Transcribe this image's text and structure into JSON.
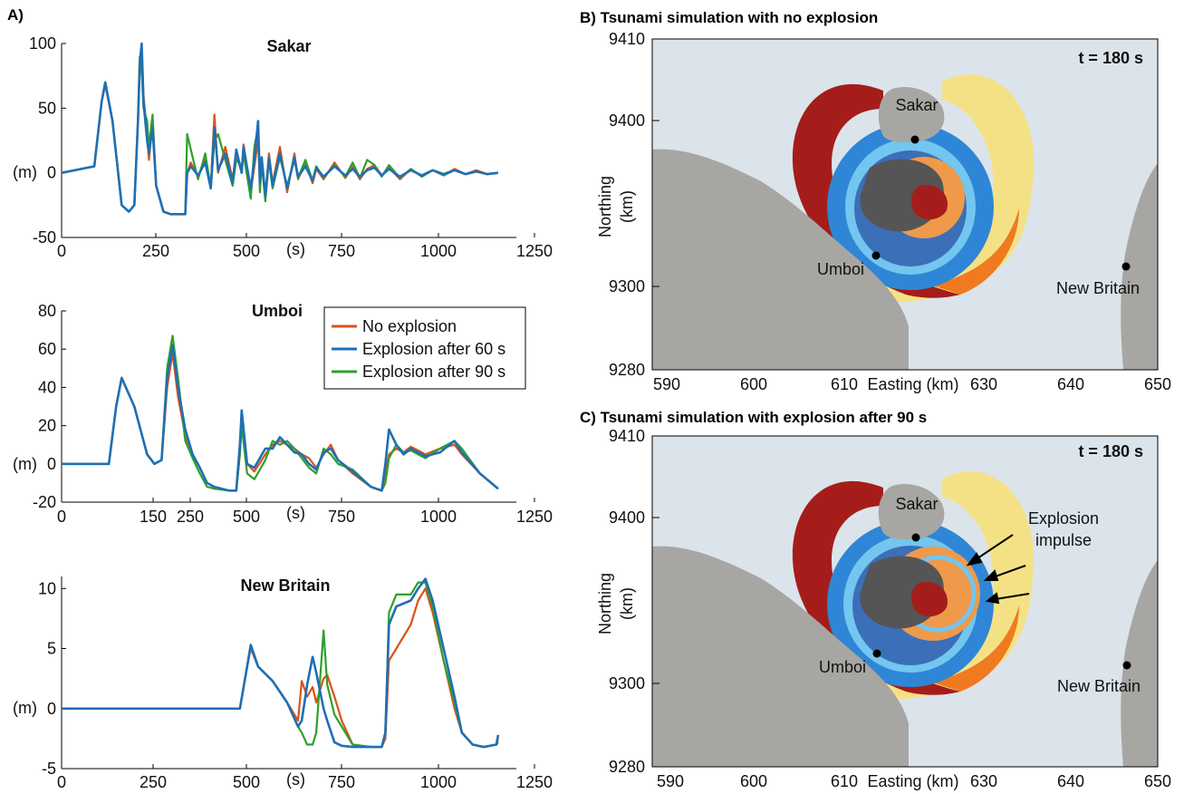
{
  "figure": {
    "panel_a_label": "A)",
    "panel_b_title": "B) Tsunami simulation with no explosion",
    "panel_c_title": "C) Tsunami simulation with explosion after 90 s"
  },
  "colors": {
    "no_explosion": "#d95319",
    "explosion_60": "#1f6fb4",
    "explosion_90": "#2ca02c",
    "sea": "#dbe4ea",
    "land": "#a8a6a2",
    "wave_red": "#a51d1a",
    "wave_orange": "#ef7a1f",
    "wave_yellow": "#f7e07a",
    "wave_blue": "#2f86d6",
    "wave_cyan": "#73c6ef"
  },
  "legend": {
    "entries": [
      "No explosion",
      "Explosion after 60 s",
      "Explosion after 90 s"
    ]
  },
  "chart_data": [
    {
      "type": "line",
      "title": "Sakar",
      "xlabel": "(s)",
      "ylabel": "(m)",
      "xlim": [
        0,
        1250
      ],
      "ylim": [
        -50,
        100
      ],
      "xticks": [
        "0",
        "250",
        "500",
        "750",
        "1000",
        "1250"
      ],
      "yticks": [
        "100",
        "50",
        "0",
        "-50"
      ],
      "series": [
        {
          "name": "No explosion",
          "x": [
            0,
            90,
            110,
            120,
            140,
            165,
            185,
            200,
            210,
            215,
            220,
            225,
            235,
            240,
            250,
            260,
            280,
            300,
            340,
            345,
            355,
            375,
            395,
            410,
            420,
            430,
            450,
            470,
            480,
            495,
            500,
            520,
            530,
            540,
            545,
            550,
            560,
            570,
            580,
            600,
            620,
            640,
            650,
            670,
            690,
            700,
            720,
            750,
            780,
            800,
            820,
            840,
            860,
            880,
            900,
            930,
            960,
            990,
            1020,
            1050,
            1080,
            1110,
            1140,
            1170,
            1200
          ],
          "y": [
            0,
            5,
            55,
            68,
            40,
            -25,
            -30,
            -25,
            40,
            80,
            95,
            60,
            30,
            10,
            40,
            -10,
            -30,
            -32,
            -32,
            0,
            8,
            -3,
            10,
            -10,
            45,
            0,
            20,
            -5,
            15,
            0,
            22,
            -15,
            5,
            25,
            -5,
            10,
            -20,
            15,
            -8,
            20,
            -15,
            15,
            -5,
            8,
            -8,
            3,
            -5,
            8,
            -4,
            5,
            -5,
            3,
            6,
            -2,
            4,
            -5,
            3,
            -3,
            2,
            -2,
            3,
            -1,
            2,
            -1,
            0
          ]
        },
        {
          "name": "Explosion after 60 s",
          "x": [
            0,
            90,
            110,
            120,
            140,
            165,
            185,
            200,
            210,
            215,
            220,
            225,
            235,
            240,
            250,
            260,
            280,
            300,
            340,
            345,
            355,
            375,
            395,
            410,
            420,
            430,
            450,
            470,
            480,
            495,
            500,
            520,
            530,
            540,
            545,
            550,
            560,
            570,
            580,
            600,
            620,
            640,
            650,
            670,
            690,
            700,
            720,
            750,
            780,
            800,
            820,
            840,
            860,
            880,
            900,
            930,
            960,
            990,
            1020,
            1050,
            1080,
            1110,
            1140,
            1170,
            1200
          ],
          "y": [
            0,
            5,
            55,
            70,
            40,
            -25,
            -30,
            -25,
            40,
            85,
            100,
            55,
            25,
            15,
            35,
            -10,
            -30,
            -32,
            -32,
            0,
            5,
            -2,
            8,
            -12,
            35,
            2,
            15,
            -8,
            18,
            0,
            20,
            -12,
            10,
            40,
            -8,
            12,
            -18,
            12,
            -10,
            15,
            -12,
            12,
            -3,
            5,
            -6,
            4,
            -3,
            5,
            -2,
            3,
            -3,
            2,
            4,
            -2,
            3,
            -3,
            2,
            -2,
            2,
            -1,
            2,
            -1,
            1,
            -1,
            0
          ]
        },
        {
          "name": "Explosion after 90 s",
          "x": [
            0,
            90,
            110,
            120,
            140,
            165,
            185,
            200,
            210,
            215,
            220,
            225,
            235,
            240,
            250,
            260,
            280,
            300,
            340,
            345,
            355,
            375,
            395,
            410,
            420,
            430,
            450,
            470,
            480,
            495,
            500,
            520,
            530,
            540,
            545,
            550,
            560,
            570,
            580,
            600,
            620,
            640,
            650,
            670,
            690,
            700,
            720,
            750,
            780,
            800,
            820,
            840,
            860,
            880,
            900,
            930,
            960,
            990,
            1020,
            1050,
            1080,
            1110,
            1140,
            1170,
            1200
          ],
          "y": [
            0,
            5,
            55,
            70,
            40,
            -25,
            -30,
            -25,
            40,
            90,
            80,
            50,
            40,
            20,
            45,
            -10,
            -30,
            -32,
            -32,
            30,
            18,
            -5,
            15,
            -12,
            25,
            30,
            10,
            -10,
            10,
            5,
            15,
            -20,
            20,
            35,
            -15,
            8,
            -22,
            10,
            -12,
            12,
            -10,
            10,
            -4,
            10,
            -6,
            5,
            -4,
            6,
            -3,
            8,
            -4,
            10,
            6,
            -3,
            6,
            -4,
            3,
            -3,
            2,
            -2,
            2,
            -1,
            1,
            -1,
            0
          ]
        }
      ]
    },
    {
      "type": "line",
      "title": "Umboi",
      "xlabel": "(s)",
      "ylabel": "(m)",
      "xlim": [
        0,
        1250
      ],
      "ylim": [
        -20,
        80
      ],
      "xticks": [
        "0",
        "150",
        "250",
        "500",
        "750",
        "1000",
        "1250"
      ],
      "yticks": [
        "80",
        "60",
        "40",
        "20",
        "0",
        "-20"
      ],
      "series": [
        {
          "name": "No explosion",
          "x": [
            0,
            130,
            150,
            165,
            200,
            235,
            255,
            275,
            290,
            305,
            320,
            340,
            360,
            380,
            400,
            420,
            460,
            480,
            490,
            495,
            510,
            530,
            560,
            580,
            600,
            620,
            640,
            660,
            680,
            700,
            720,
            740,
            760,
            800,
            850,
            880,
            890,
            900,
            920,
            940,
            960,
            980,
            1000,
            1040,
            1080,
            1100,
            1150,
            1200
          ],
          "y": [
            0,
            0,
            30,
            45,
            30,
            5,
            0,
            2,
            40,
            58,
            35,
            15,
            5,
            -2,
            -10,
            -12,
            -14,
            -14,
            5,
            22,
            0,
            -4,
            5,
            10,
            12,
            10,
            8,
            5,
            3,
            -2,
            5,
            10,
            2,
            -5,
            -12,
            -14,
            -5,
            5,
            8,
            6,
            9,
            7,
            5,
            8,
            10,
            5,
            -5,
            -13
          ]
        },
        {
          "name": "Explosion after 60 s",
          "x": [
            0,
            130,
            150,
            165,
            200,
            235,
            255,
            275,
            290,
            305,
            320,
            340,
            360,
            380,
            400,
            420,
            460,
            480,
            490,
            495,
            510,
            530,
            560,
            580,
            600,
            620,
            640,
            660,
            680,
            700,
            720,
            740,
            760,
            800,
            850,
            880,
            890,
            900,
            920,
            940,
            960,
            980,
            1000,
            1040,
            1080,
            1100,
            1150,
            1200
          ],
          "y": [
            0,
            0,
            30,
            45,
            30,
            5,
            0,
            2,
            45,
            62,
            40,
            18,
            5,
            -2,
            -10,
            -12,
            -14,
            -14,
            10,
            28,
            0,
            -2,
            8,
            8,
            14,
            10,
            6,
            5,
            0,
            -3,
            6,
            8,
            2,
            -4,
            -12,
            -14,
            0,
            18,
            10,
            5,
            8,
            6,
            4,
            6,
            12,
            6,
            -5,
            -13
          ]
        },
        {
          "name": "Explosion after 90 s",
          "x": [
            0,
            130,
            150,
            165,
            200,
            235,
            255,
            275,
            290,
            305,
            320,
            340,
            360,
            380,
            400,
            420,
            460,
            480,
            490,
            495,
            510,
            530,
            560,
            580,
            600,
            620,
            640,
            660,
            680,
            700,
            720,
            740,
            760,
            800,
            850,
            880,
            890,
            900,
            920,
            940,
            960,
            980,
            1000,
            1040,
            1080,
            1100,
            1150,
            1200
          ],
          "y": [
            0,
            0,
            30,
            45,
            30,
            5,
            0,
            2,
            50,
            67,
            45,
            12,
            3,
            -5,
            -12,
            -13,
            -14,
            -14,
            5,
            20,
            -5,
            -8,
            2,
            12,
            10,
            12,
            8,
            3,
            -2,
            -5,
            8,
            5,
            0,
            -3,
            -12,
            -14,
            -10,
            3,
            10,
            6,
            7,
            5,
            3,
            8,
            12,
            8,
            -5,
            -13
          ]
        }
      ]
    },
    {
      "type": "line",
      "title": "New Britain",
      "xlabel": "(s)",
      "ylabel": "(m)",
      "xlim": [
        0,
        1250
      ],
      "ylim": [
        -5,
        11
      ],
      "xticks": [
        "0",
        "250",
        "500",
        "750",
        "1000",
        "1250"
      ],
      "yticks": [
        "10",
        "5",
        "0",
        "-5"
      ],
      "series": [
        {
          "name": "No explosion",
          "x": [
            0,
            490,
            510,
            520,
            540,
            580,
            620,
            650,
            660,
            675,
            690,
            700,
            720,
            730,
            750,
            770,
            800,
            850,
            880,
            890,
            900,
            920,
            960,
            980,
            1000,
            1020,
            1050,
            1080,
            1100,
            1130,
            1160,
            1195,
            1200
          ],
          "y": [
            0,
            0,
            3.5,
            5,
            3.5,
            2.3,
            0.5,
            -1,
            2.3,
            1,
            1.8,
            0.5,
            2.5,
            2.8,
            1,
            -1,
            -3,
            -3.2,
            -3.2,
            -2.5,
            4,
            5,
            7,
            9,
            10,
            8,
            4,
            0,
            -2,
            -3,
            -3.2,
            -3,
            -2.5
          ]
        },
        {
          "name": "Explosion after 60 s",
          "x": [
            0,
            490,
            510,
            520,
            540,
            580,
            620,
            650,
            660,
            675,
            690,
            700,
            720,
            730,
            750,
            770,
            800,
            850,
            880,
            890,
            900,
            920,
            960,
            980,
            1000,
            1020,
            1050,
            1080,
            1100,
            1130,
            1160,
            1195,
            1200
          ],
          "y": [
            0,
            0,
            3.5,
            5.3,
            3.5,
            2.3,
            0.5,
            -1.5,
            -1,
            2,
            4.3,
            3,
            0,
            -1,
            -2.8,
            -3.1,
            -3.2,
            -3.2,
            -3.2,
            -2,
            7,
            8.5,
            9,
            10,
            10.8,
            9,
            5,
            1,
            -2,
            -3,
            -3.2,
            -3,
            -2.2
          ]
        },
        {
          "name": "Explosion after 90 s",
          "x": [
            0,
            490,
            510,
            520,
            540,
            580,
            620,
            650,
            660,
            675,
            690,
            700,
            720,
            730,
            750,
            770,
            800,
            850,
            880,
            890,
            900,
            920,
            960,
            980,
            1000,
            1020,
            1050,
            1080,
            1100,
            1130,
            1160,
            1195,
            1200
          ],
          "y": [
            0,
            0,
            3.5,
            5.3,
            3.5,
            2.3,
            0.5,
            -1.5,
            -2,
            -3,
            -3,
            -2,
            6.5,
            2,
            -0.5,
            -1.5,
            -3,
            -3.2,
            -3.2,
            -2,
            8,
            9.5,
            9.5,
            10.5,
            10.5,
            8.5,
            4,
            0.5,
            -2,
            -3,
            -3.2,
            -3,
            -2.8
          ]
        }
      ]
    }
  ],
  "maps": [
    {
      "id": "B",
      "time_label": "t = 180 s",
      "xlabel": "Easting (km)",
      "ylabel_line1": "Northing",
      "ylabel_line2": "(km)",
      "xticks": [
        "590",
        "600",
        "610",
        "630",
        "640",
        "650"
      ],
      "yticks": [
        "9410",
        "9400",
        "9300",
        "9280"
      ],
      "places": [
        "Sakar",
        "Umboi",
        "New Britain"
      ]
    },
    {
      "id": "C",
      "time_label": "t = 180 s",
      "xlabel": "Easting (km)",
      "ylabel_line1": "Northing",
      "ylabel_line2": "(km)",
      "xticks": [
        "590",
        "600",
        "610",
        "630",
        "640",
        "650"
      ],
      "yticks": [
        "9410",
        "9400",
        "9300",
        "9280"
      ],
      "places": [
        "Sakar",
        "Umboi",
        "New Britain"
      ],
      "annotation_line1": "Explosion",
      "annotation_line2": "impulse"
    }
  ]
}
